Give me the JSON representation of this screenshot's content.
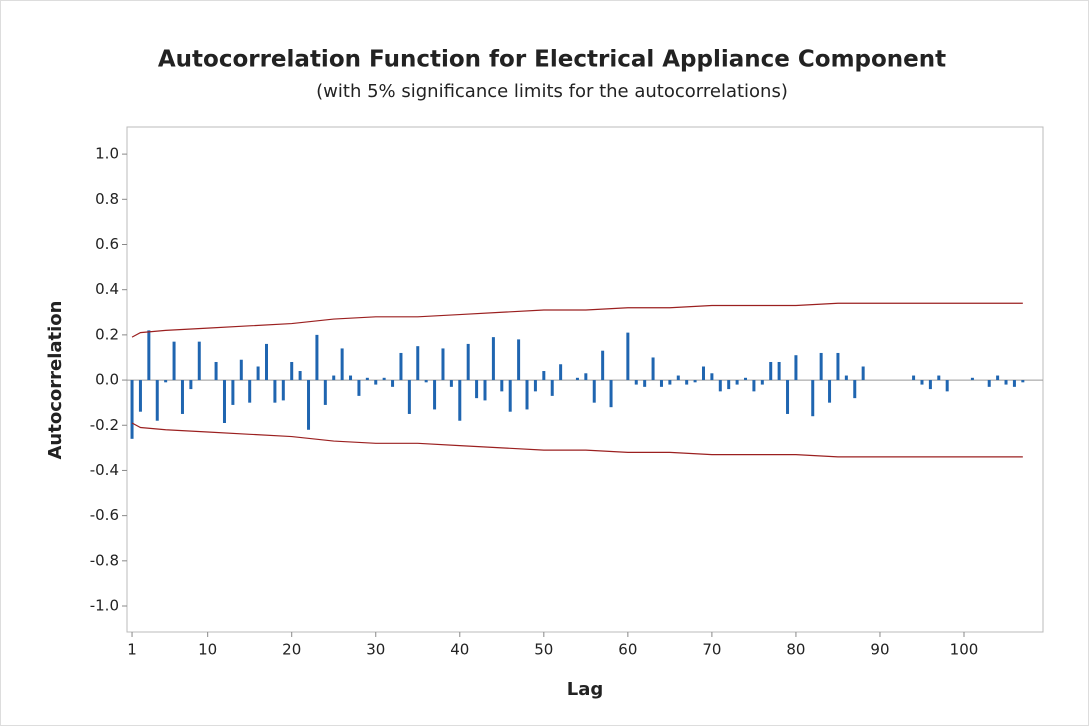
{
  "chart_data": {
    "type": "acf",
    "title": "Autocorrelation Function for Electrical Appliance Component",
    "subtitle": "(with 5% significance limits for the autocorrelations)",
    "x_label": "Lag",
    "y_label": "Autocorrelation",
    "color": "#1f65b0",
    "limit_color": "#9b2020",
    "xlim": [
      0.4,
      109.4
    ],
    "ylim": [
      -1.115,
      1.12
    ],
    "xticks": [
      1,
      10,
      20,
      30,
      40,
      50,
      60,
      70,
      80,
      90,
      100
    ],
    "yticks": [
      {
        "value": 1.0,
        "label": "1.0"
      },
      {
        "value": 0.8,
        "label": "0.8"
      },
      {
        "value": 0.6,
        "label": "0.6"
      },
      {
        "value": 0.4,
        "label": "0.4"
      },
      {
        "value": 0.2,
        "label": "0.2"
      },
      {
        "value": 0.0,
        "label": "0.0"
      },
      {
        "value": -0.2,
        "label": "-0.2"
      },
      {
        "value": -0.4,
        "label": "-0.4"
      },
      {
        "value": -0.6,
        "label": "-0.6"
      },
      {
        "value": -0.8,
        "label": "-0.8"
      },
      {
        "value": -1.0,
        "label": "-1.0"
      }
    ],
    "x": [
      1,
      2,
      3,
      4,
      5,
      6,
      7,
      8,
      9,
      10,
      11,
      12,
      13,
      14,
      15,
      16,
      17,
      18,
      19,
      20,
      21,
      22,
      23,
      24,
      25,
      26,
      27,
      28,
      29,
      30,
      31,
      32,
      33,
      34,
      35,
      36,
      37,
      38,
      39,
      40,
      41,
      42,
      43,
      44,
      45,
      46,
      47,
      48,
      49,
      50,
      51,
      52,
      53,
      54,
      55,
      56,
      57,
      58,
      59,
      60,
      61,
      62,
      63,
      64,
      65,
      66,
      67,
      68,
      69,
      70,
      71,
      72,
      73,
      74,
      75,
      76,
      77,
      78,
      79,
      80,
      81,
      82,
      83,
      84,
      85,
      86,
      87,
      88,
      89,
      90,
      91,
      92,
      93,
      94,
      95,
      96,
      97,
      98,
      99,
      100,
      101,
      102,
      103,
      104,
      105,
      106,
      107
    ],
    "values": [
      -0.26,
      -0.14,
      0.22,
      -0.18,
      -0.01,
      0.17,
      -0.15,
      -0.04,
      0.17,
      0.0,
      0.08,
      -0.19,
      -0.11,
      0.09,
      -0.1,
      0.06,
      0.16,
      -0.1,
      -0.09,
      0.08,
      0.04,
      -0.22,
      0.2,
      -0.11,
      0.02,
      0.14,
      0.02,
      -0.07,
      0.01,
      -0.02,
      0.01,
      -0.03,
      0.12,
      -0.15,
      0.15,
      -0.01,
      -0.13,
      0.14,
      -0.03,
      -0.18,
      0.16,
      -0.08,
      -0.09,
      0.19,
      -0.05,
      -0.14,
      0.18,
      -0.13,
      -0.05,
      0.04,
      -0.07,
      0.07,
      0.0,
      0.01,
      0.03,
      -0.1,
      0.13,
      -0.12,
      0.0,
      0.21,
      -0.02,
      -0.03,
      0.1,
      -0.03,
      -0.02,
      0.02,
      -0.02,
      -0.01,
      0.06,
      0.03,
      -0.05,
      -0.04,
      -0.02,
      0.01,
      -0.05,
      -0.02,
      0.08,
      0.08,
      -0.15,
      0.11,
      0.0,
      -0.16,
      0.12,
      -0.1,
      0.12,
      0.02,
      -0.08,
      0.06,
      0.0,
      0.0,
      0.0,
      0.0,
      0.0,
      0.02,
      -0.02,
      -0.04,
      0.02,
      -0.05,
      0.0,
      0.0,
      0.01,
      0.0,
      -0.03,
      0.02,
      -0.02,
      -0.03,
      -0.01
    ],
    "limit_x": [
      1,
      2,
      5,
      10,
      15,
      20,
      25,
      30,
      35,
      40,
      45,
      50,
      55,
      60,
      65,
      70,
      75,
      80,
      85,
      89,
      107
    ],
    "upper_limit": [
      0.19,
      0.21,
      0.22,
      0.23,
      0.24,
      0.25,
      0.27,
      0.28,
      0.28,
      0.29,
      0.3,
      0.31,
      0.31,
      0.32,
      0.32,
      0.33,
      0.33,
      0.33,
      0.34,
      0.34,
      0.34
    ],
    "lower_limit": [
      -0.19,
      -0.21,
      -0.22,
      -0.23,
      -0.24,
      -0.25,
      -0.27,
      -0.28,
      -0.28,
      -0.29,
      -0.3,
      -0.31,
      -0.31,
      -0.32,
      -0.32,
      -0.33,
      -0.33,
      -0.33,
      -0.34,
      -0.34,
      -0.34
    ]
  }
}
